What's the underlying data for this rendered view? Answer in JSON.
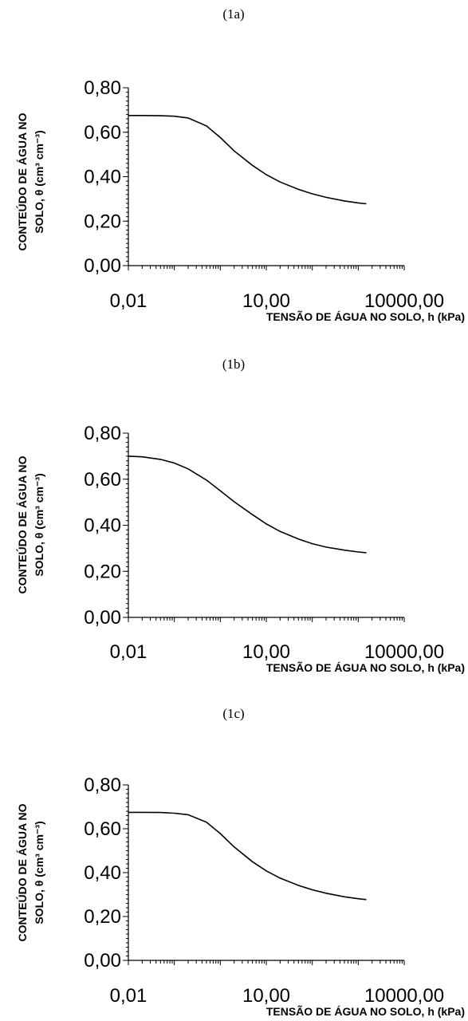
{
  "chart_data": [
    {
      "type": "line",
      "panel_label": "(1a)",
      "ylabel_line1": "CONTEÚDO DE ÁGUA NO",
      "ylabel_line2": "SOLO, θ (cm³ cm⁻³)",
      "xlabel": "TENSÃO DE ÁGUA NO SOLO, h (kPa)",
      "x_scale": "log",
      "xlim": [
        0.01,
        10000
      ],
      "ylim": [
        0,
        0.8
      ],
      "x_tick_labels": [
        {
          "value": 0.01,
          "label": "0,01"
        },
        {
          "value": 10,
          "label": "10,00"
        },
        {
          "value": 10000,
          "label": "10000,00"
        }
      ],
      "y_tick_labels": [
        {
          "value": 0.8,
          "label": "0,80"
        },
        {
          "value": 0.6,
          "label": "0,60"
        },
        {
          "value": 0.4,
          "label": "0,40"
        },
        {
          "value": 0.2,
          "label": "0,20"
        },
        {
          "value": 0.0,
          "label": "0,00"
        }
      ],
      "grid": false,
      "series": [
        {
          "x": [
            0.01,
            0.02,
            0.05,
            0.1,
            0.2,
            0.5,
            1,
            2,
            5,
            10,
            20,
            50,
            100,
            200,
            500,
            1000,
            1500
          ],
          "values": [
            0.675,
            0.675,
            0.674,
            0.672,
            0.664,
            0.628,
            0.576,
            0.516,
            0.451,
            0.409,
            0.376,
            0.343,
            0.323,
            0.307,
            0.291,
            0.282,
            0.278
          ]
        }
      ]
    },
    {
      "type": "line",
      "panel_label": "(1b)",
      "ylabel_line1": "CONTEÚDO DE ÁGUA NO",
      "ylabel_line2": "SOLO, θ (cm³ cm⁻³)",
      "xlabel": "TENSÃO DE ÁGUA NO SOLO, h (kPa)",
      "x_scale": "log",
      "xlim": [
        0.01,
        10000
      ],
      "ylim": [
        0,
        0.8
      ],
      "x_tick_labels": [
        {
          "value": 0.01,
          "label": "0,01"
        },
        {
          "value": 10,
          "label": "10,00"
        },
        {
          "value": 10000,
          "label": "10000,00"
        }
      ],
      "y_tick_labels": [
        {
          "value": 0.8,
          "label": "0,80"
        },
        {
          "value": 0.6,
          "label": "0,60"
        },
        {
          "value": 0.4,
          "label": "0,40"
        },
        {
          "value": 0.2,
          "label": "0,20"
        },
        {
          "value": 0.0,
          "label": "0,00"
        }
      ],
      "grid": false,
      "series": [
        {
          "x": [
            0.01,
            0.02,
            0.05,
            0.1,
            0.2,
            0.5,
            1,
            2,
            5,
            10,
            20,
            50,
            100,
            200,
            500,
            1000,
            1500
          ],
          "values": [
            0.7,
            0.697,
            0.686,
            0.67,
            0.645,
            0.596,
            0.55,
            0.502,
            0.446,
            0.406,
            0.373,
            0.34,
            0.32,
            0.305,
            0.292,
            0.284,
            0.281
          ]
        }
      ]
    },
    {
      "type": "line",
      "panel_label": "(1c)",
      "ylabel_line1": "CONTEÚDO DE ÁGUA NO",
      "ylabel_line2": "SOLO, θ (cm³ cm⁻³)",
      "xlabel": "TENSÃO DE ÁGUA NO SOLO, h (kPa)",
      "x_scale": "log",
      "xlim": [
        0.01,
        10000
      ],
      "ylim": [
        0,
        0.8
      ],
      "x_tick_labels": [
        {
          "value": 0.01,
          "label": "0,01"
        },
        {
          "value": 10,
          "label": "10,00"
        },
        {
          "value": 10000,
          "label": "10000,00"
        }
      ],
      "y_tick_labels": [
        {
          "value": 0.8,
          "label": "0,80"
        },
        {
          "value": 0.6,
          "label": "0,60"
        },
        {
          "value": 0.4,
          "label": "0,40"
        },
        {
          "value": 0.2,
          "label": "0,20"
        },
        {
          "value": 0.0,
          "label": "0,00"
        }
      ],
      "grid": false,
      "series": [
        {
          "x": [
            0.01,
            0.02,
            0.05,
            0.1,
            0.2,
            0.5,
            1,
            2,
            5,
            10,
            20,
            50,
            100,
            200,
            500,
            1000,
            1500
          ],
          "values": [
            0.675,
            0.675,
            0.674,
            0.671,
            0.664,
            0.63,
            0.578,
            0.517,
            0.45,
            0.408,
            0.375,
            0.342,
            0.322,
            0.306,
            0.29,
            0.281,
            0.277
          ]
        }
      ]
    }
  ]
}
